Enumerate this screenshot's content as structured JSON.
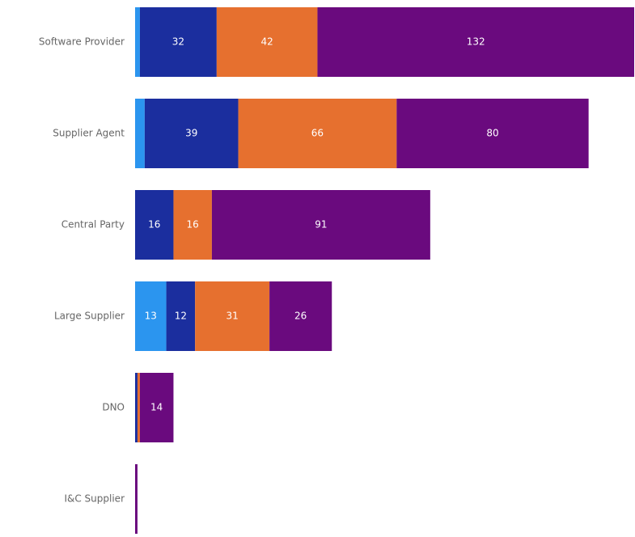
{
  "chart_data": {
    "type": "stacked-bar-horizontal",
    "categories": [
      "Software Provider",
      "Supplier Agent",
      "Central Party",
      "Large Supplier",
      "DNO",
      "I&C Supplier"
    ],
    "series": [
      {
        "color": "#2b95ef",
        "values": [
          2,
          4,
          0,
          13,
          0,
          0
        ]
      },
      {
        "color": "#1b2e9e",
        "values": [
          32,
          39,
          16,
          12,
          1,
          0
        ]
      },
      {
        "color": "#e6702f",
        "values": [
          42,
          66,
          16,
          31,
          1,
          0
        ]
      },
      {
        "color": "#6a0a7e",
        "values": [
          132,
          80,
          91,
          26,
          14,
          1
        ]
      }
    ],
    "xlim": [
      0,
      208
    ]
  }
}
